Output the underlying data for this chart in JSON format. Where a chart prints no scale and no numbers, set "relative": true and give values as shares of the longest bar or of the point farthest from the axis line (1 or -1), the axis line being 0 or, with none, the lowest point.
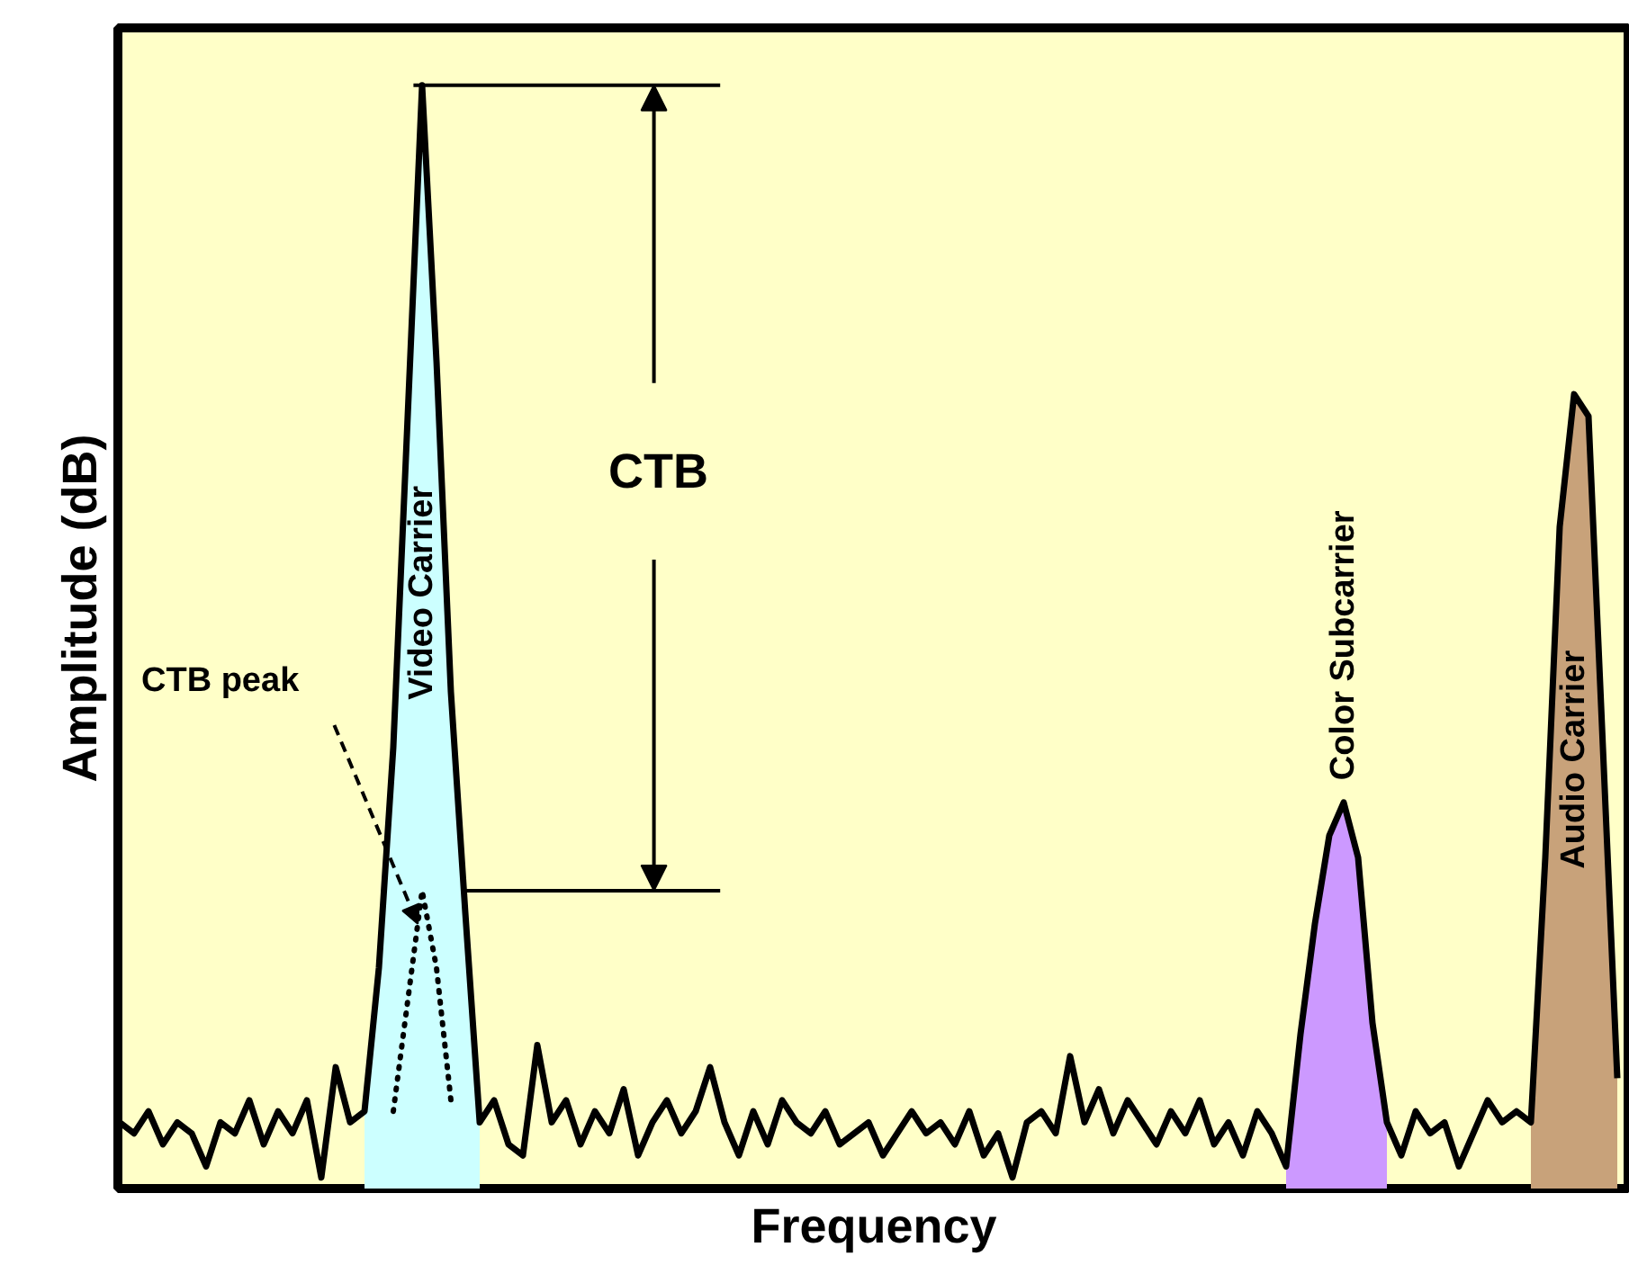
{
  "chart_data": {
    "type": "line",
    "relative": true,
    "xlabel": "Frequency",
    "ylabel": "Amplitude (dB)",
    "grid": false,
    "categories": [
      null,
      null,
      null,
      null,
      null,
      null,
      null,
      null,
      null,
      null,
      null,
      null,
      null,
      null,
      null,
      null,
      null,
      null,
      null,
      null,
      null,
      null,
      null,
      null,
      null,
      null,
      null,
      null,
      null,
      null,
      null,
      null,
      null,
      null,
      null,
      null,
      null,
      null,
      null,
      null,
      null,
      null,
      null,
      null,
      null,
      null,
      null,
      null,
      null,
      null,
      null,
      null,
      null,
      null,
      null,
      null,
      null,
      null,
      null,
      null,
      null,
      null,
      null,
      null,
      null,
      null,
      null,
      null,
      null,
      null,
      null,
      null,
      null,
      null,
      null,
      null,
      null,
      null,
      null,
      null,
      null,
      null,
      null,
      null,
      null,
      null,
      null,
      null,
      null,
      null,
      null,
      null,
      null,
      null,
      null,
      null,
      null,
      null,
      null,
      null,
      null,
      null,
      null,
      null,
      null
    ],
    "series": [
      {
        "color": "#000000",
        "values": [
          0.06,
          0.05,
          0.07,
          0.04,
          0.06,
          0.05,
          0.02,
          0.06,
          0.05,
          0.08,
          0.04,
          0.07,
          0.05,
          0.08,
          0.01,
          0.11,
          0.06,
          0.07,
          0.2,
          0.4,
          0.7,
          1,
          0.75,
          0.45,
          0.25,
          0.06,
          0.08,
          0.04,
          0.03,
          0.13,
          0.06,
          0.08,
          0.04,
          0.07,
          0.05,
          0.09,
          0.03,
          0.06,
          0.08,
          0.05,
          0.07,
          0.11,
          0.06,
          0.03,
          0.07,
          0.04,
          0.08,
          0.06,
          0.05,
          0.07,
          0.04,
          0.05,
          0.06,
          0.03,
          0.05,
          0.07,
          0.05,
          0.06,
          0.04,
          0.07,
          0.03,
          0.05,
          0.01,
          0.06,
          0.07,
          0.05,
          0.12,
          0.06,
          0.09,
          0.05,
          0.08,
          0.06,
          0.04,
          0.07,
          0.05,
          0.08,
          0.04,
          0.06,
          0.03,
          0.07,
          0.05,
          0.02,
          0.14,
          0.24,
          0.32,
          0.35,
          0.3,
          0.15,
          0.06,
          0.03,
          0.07,
          0.05,
          0.06,
          0.02,
          0.05,
          0.08,
          0.06,
          0.07,
          0.06,
          0.3,
          0.6,
          0.72,
          0.7,
          0.4,
          0.1
        ]
      },
      {
        "type": "area",
        "name": "Video Carrier",
        "color": "#ccffff",
        "values": [
          null,
          null,
          null,
          null,
          null,
          null,
          null,
          null,
          null,
          null,
          null,
          null,
          null,
          null,
          null,
          null,
          null,
          0.07,
          0.2,
          0.4,
          0.7,
          1,
          0.75,
          0.45,
          0.25,
          0.06,
          null,
          null,
          null,
          null,
          null,
          null,
          null,
          null,
          null,
          null,
          null,
          null,
          null,
          null,
          null,
          null,
          null,
          null,
          null,
          null,
          null,
          null,
          null,
          null,
          null,
          null,
          null,
          null,
          null,
          null,
          null,
          null,
          null,
          null,
          null,
          null,
          null,
          null,
          null,
          null,
          null,
          null,
          null,
          null,
          null,
          null,
          null,
          null,
          null,
          null,
          null,
          null,
          null,
          null,
          null,
          null,
          null,
          null,
          null,
          null,
          null,
          null,
          null,
          null,
          null,
          null,
          null,
          null,
          null,
          null,
          null,
          null,
          null,
          null,
          null,
          null,
          null,
          null,
          null
        ]
      },
      {
        "line_style": "dotted",
        "color": "#000000",
        "values": [
          null,
          null,
          null,
          null,
          null,
          null,
          null,
          null,
          null,
          null,
          null,
          null,
          null,
          null,
          null,
          null,
          null,
          null,
          null,
          0.07,
          0.17,
          0.27,
          0.2,
          0.08,
          null,
          null,
          null,
          null,
          null,
          null,
          null,
          null,
          null,
          null,
          null,
          null,
          null,
          null,
          null,
          null,
          null,
          null,
          null,
          null,
          null,
          null,
          null,
          null,
          null,
          null,
          null,
          null,
          null,
          null,
          null,
          null,
          null,
          null,
          null,
          null,
          null,
          null,
          null,
          null,
          null,
          null,
          null,
          null,
          null,
          null,
          null,
          null,
          null,
          null,
          null,
          null,
          null,
          null,
          null,
          null,
          null,
          null,
          null,
          null,
          null,
          null,
          null,
          null,
          null,
          null,
          null,
          null,
          null,
          null,
          null,
          null,
          null,
          null,
          null,
          null,
          null,
          null,
          null,
          null,
          null
        ]
      },
      {
        "type": "area",
        "name": "Color Subcarrier",
        "color": "#cc99ff",
        "values": [
          null,
          null,
          null,
          null,
          null,
          null,
          null,
          null,
          null,
          null,
          null,
          null,
          null,
          null,
          null,
          null,
          null,
          null,
          null,
          null,
          null,
          null,
          null,
          null,
          null,
          null,
          null,
          null,
          null,
          null,
          null,
          null,
          null,
          null,
          null,
          null,
          null,
          null,
          null,
          null,
          null,
          null,
          null,
          null,
          null,
          null,
          null,
          null,
          null,
          null,
          null,
          null,
          null,
          null,
          null,
          null,
          null,
          null,
          null,
          null,
          null,
          null,
          null,
          null,
          null,
          null,
          null,
          null,
          null,
          null,
          null,
          null,
          null,
          null,
          null,
          null,
          null,
          null,
          null,
          null,
          null,
          0.02,
          0.14,
          0.24,
          0.32,
          0.35,
          0.3,
          0.15,
          0.06,
          null,
          null,
          null,
          null,
          null,
          null,
          null,
          null,
          null,
          null,
          null,
          null,
          null,
          null,
          null,
          null
        ]
      },
      {
        "type": "area",
        "name": "Audio Carrier",
        "color": "#c8a27a",
        "values": [
          null,
          null,
          null,
          null,
          null,
          null,
          null,
          null,
          null,
          null,
          null,
          null,
          null,
          null,
          null,
          null,
          null,
          null,
          null,
          null,
          null,
          null,
          null,
          null,
          null,
          null,
          null,
          null,
          null,
          null,
          null,
          null,
          null,
          null,
          null,
          null,
          null,
          null,
          null,
          null,
          null,
          null,
          null,
          null,
          null,
          null,
          null,
          null,
          null,
          null,
          null,
          null,
          null,
          null,
          null,
          null,
          null,
          null,
          null,
          null,
          null,
          null,
          null,
          null,
          null,
          null,
          null,
          null,
          null,
          null,
          null,
          null,
          null,
          null,
          null,
          null,
          null,
          null,
          null,
          null,
          null,
          null,
          null,
          null,
          null,
          null,
          null,
          null,
          null,
          null,
          null,
          null,
          null,
          null,
          null,
          null,
          null,
          null,
          0.06,
          0.3,
          0.6,
          0.72,
          0.7,
          0.4,
          0.1
        ]
      }
    ],
    "ref_lines": [
      {
        "axis": "y",
        "value": 1
      },
      {
        "axis": "y",
        "value": 0.27
      }
    ],
    "annotations": [
      {
        "text": "CTB"
      },
      {
        "text": "CTB peak"
      }
    ]
  }
}
